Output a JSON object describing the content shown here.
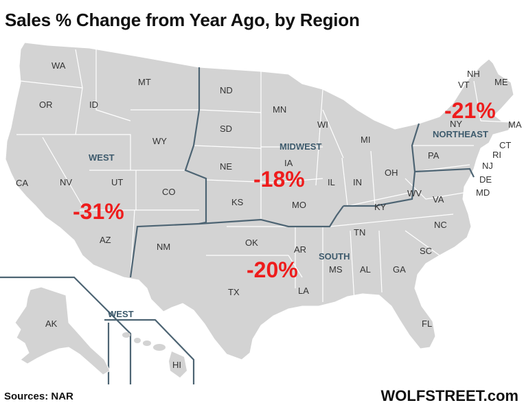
{
  "title": "Sales % Change from Year Ago, by Region",
  "source": "Sources: NAR",
  "brand": "WOLFSTREET.com",
  "colors": {
    "land": "#d3d3d3",
    "state_border": "#ffffff",
    "region_border": "#4d6473",
    "region_text": "#3d5a6c",
    "percent_text": "#ee1c1c"
  },
  "regions": {
    "west": {
      "name": "WEST",
      "change": "-31%"
    },
    "midwest": {
      "name": "MIDWEST",
      "change": "-18%"
    },
    "south": {
      "name": "SOUTH",
      "change": "-20%"
    },
    "northeast": {
      "name": "NORTHEAST",
      "change": "-21%"
    },
    "west_inset": {
      "name": "WEST"
    }
  },
  "states": {
    "WA": "WA",
    "OR": "OR",
    "CA": "CA",
    "ID": "ID",
    "NV": "NV",
    "MT": "MT",
    "WY": "WY",
    "UT": "UT",
    "CO": "CO",
    "AZ": "AZ",
    "NM": "NM",
    "AK": "AK",
    "HI": "HI",
    "ND": "ND",
    "SD": "SD",
    "NE": "NE",
    "KS": "KS",
    "MN": "MN",
    "IA": "IA",
    "MO": "MO",
    "WI": "WI",
    "IL": "IL",
    "MI": "MI",
    "IN": "IN",
    "OH": "OH",
    "OK": "OK",
    "TX": "TX",
    "AR": "AR",
    "LA": "LA",
    "MS": "MS",
    "AL": "AL",
    "TN": "TN",
    "KY": "KY",
    "GA": "GA",
    "FL": "FL",
    "SC": "SC",
    "NC": "NC",
    "VA": "VA",
    "WV": "WV",
    "DE": "DE",
    "MD": "MD",
    "PA": "PA",
    "NY": "NY",
    "NJ": "NJ",
    "CT": "CT",
    "RI": "RI",
    "MA": "MA",
    "VT": "VT",
    "NH": "NH",
    "ME": "ME"
  }
}
